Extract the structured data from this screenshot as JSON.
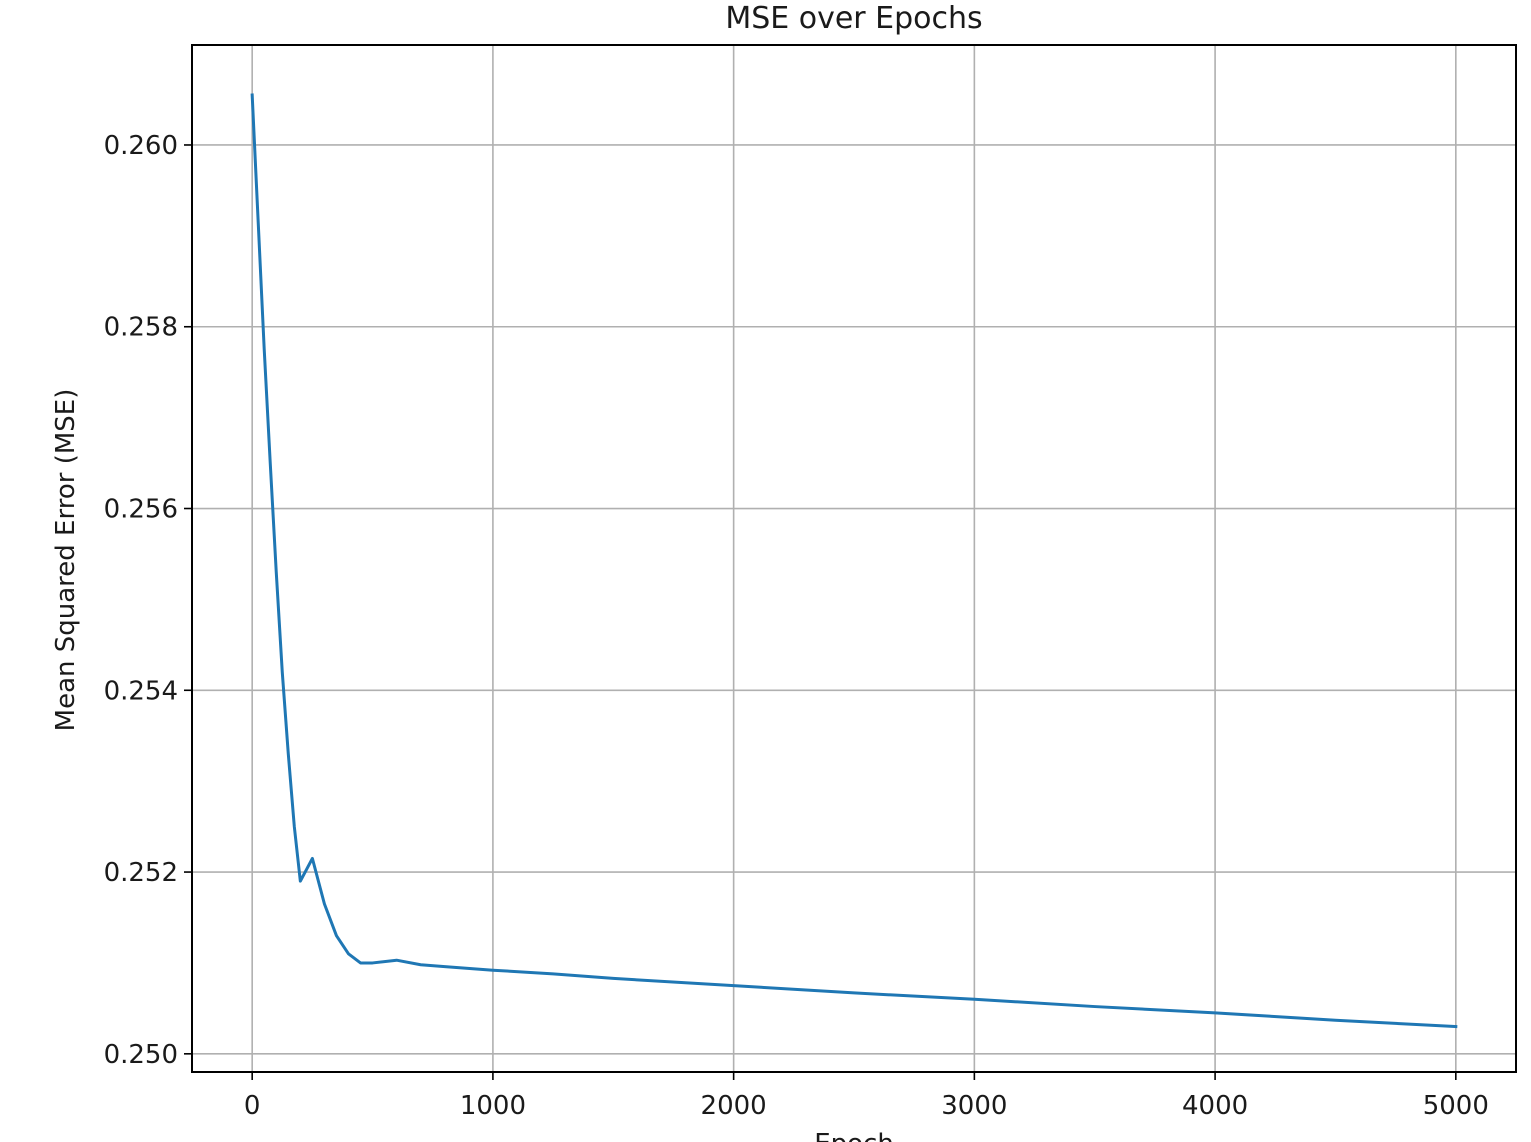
{
  "chart_data": {
    "type": "line",
    "title": "MSE over Epochs",
    "xlabel": "Epoch",
    "ylabel": "Mean Squared Error (MSE)",
    "xlim": [
      -250,
      5250
    ],
    "ylim": [
      0.2498,
      0.2611
    ],
    "xticks": [
      0,
      1000,
      2000,
      3000,
      4000,
      5000
    ],
    "xtick_labels": [
      "0",
      "1000",
      "2000",
      "3000",
      "4000",
      "5000"
    ],
    "yticks": [
      0.25,
      0.252,
      0.254,
      0.256,
      0.258,
      0.26
    ],
    "ytick_labels": [
      "0.250",
      "0.252",
      "0.254",
      "0.256",
      "0.258",
      "0.260"
    ],
    "grid": true,
    "series": [
      {
        "color": "#1f77b4",
        "x": [
          0,
          25,
          50,
          75,
          100,
          125,
          150,
          175,
          200,
          250,
          300,
          350,
          400,
          450,
          500,
          600,
          700,
          800,
          1000,
          1250,
          1500,
          2000,
          2500,
          3000,
          3500,
          4000,
          4500,
          5000
        ],
        "y": [
          0.26055,
          0.25915,
          0.25775,
          0.2565,
          0.2553,
          0.2542,
          0.2533,
          0.2525,
          0.2519,
          0.25215,
          0.25165,
          0.2513,
          0.2511,
          0.251,
          0.251,
          0.25103,
          0.25098,
          0.25096,
          0.25092,
          0.25088,
          0.25083,
          0.25075,
          0.25067,
          0.2506,
          0.25052,
          0.25045,
          0.25037,
          0.2503
        ]
      }
    ]
  }
}
